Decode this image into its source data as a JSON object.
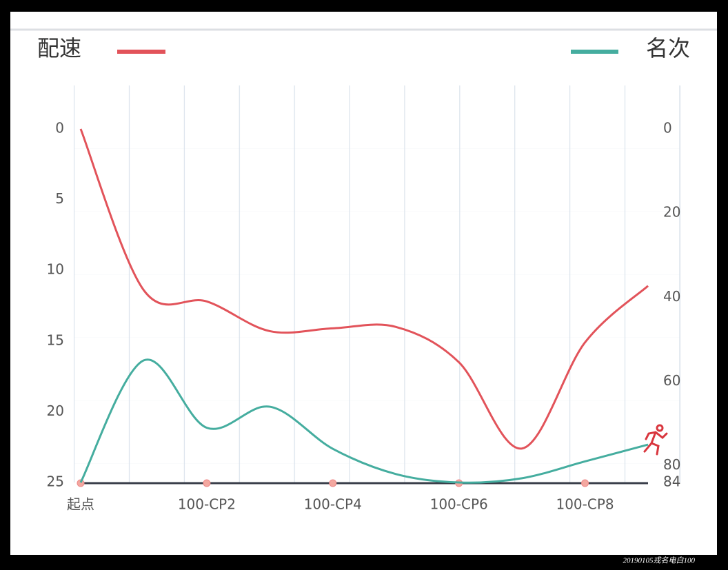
{
  "chart_data": {
    "type": "line",
    "categories": [
      "起点",
      null,
      "100-CP2",
      null,
      "100-CP4",
      null,
      "100-CP6",
      null,
      "100-CP8",
      null
    ],
    "series": [
      {
        "name": "配速",
        "color": "#e2535a",
        "values": [
          0,
          11.4,
          12.2,
          14.3,
          14.1,
          14.0,
          16.5,
          22.6,
          15.1,
          11.1
        ]
      },
      {
        "name": "名次",
        "color": "#45ad9f",
        "axis": "y2",
        "values": [
          84,
          55,
          71,
          66,
          76,
          82,
          84,
          83,
          79,
          75
        ]
      }
    ],
    "ylim": [
      0,
      25
    ],
    "yticks": [
      0,
      5,
      10,
      15,
      20,
      25
    ],
    "y2lim": [
      0,
      84
    ],
    "y2ticks": [
      0,
      20,
      40,
      60,
      80,
      84
    ],
    "inverted": true
  },
  "watermark": "20190105戎名电白100"
}
